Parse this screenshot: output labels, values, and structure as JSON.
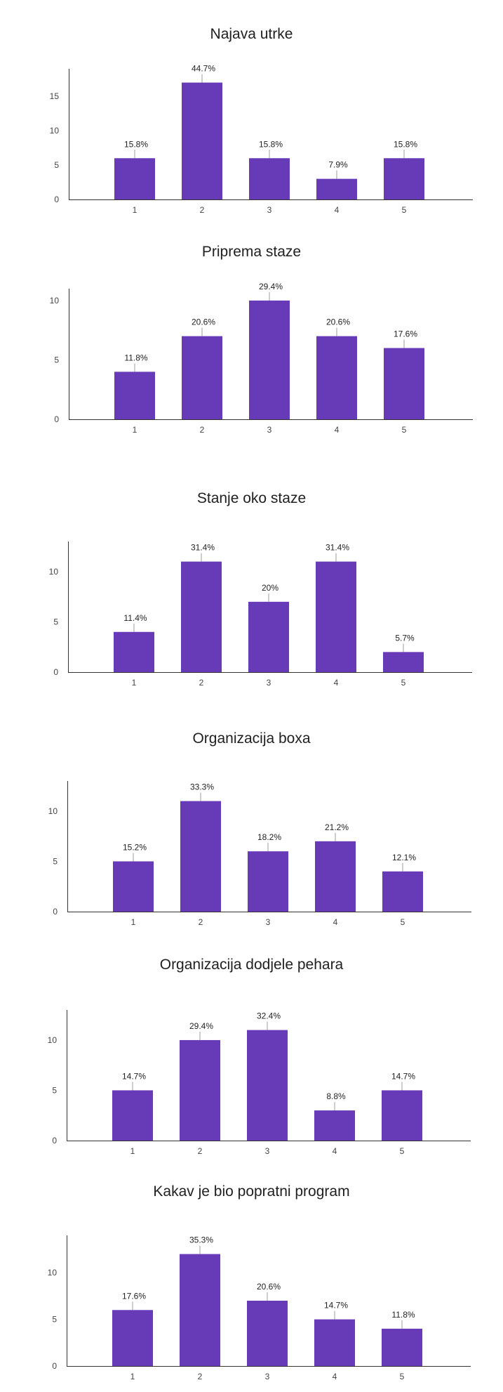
{
  "colors": {
    "bar": "#673AB7",
    "axis": "#333333",
    "leader": "#9E9E9E"
  },
  "chart_data": [
    {
      "type": "bar",
      "title": "Najava utrke",
      "categories": [
        "1",
        "2",
        "3",
        "4",
        "5"
      ],
      "values": [
        6,
        17,
        6,
        3,
        6
      ],
      "data_labels": [
        "15.8%",
        "44.7%",
        "15.8%",
        "7.9%",
        "15.8%"
      ],
      "yticks": [
        0,
        5,
        10,
        15
      ],
      "ylim": [
        0,
        19
      ],
      "grid": false
    },
    {
      "type": "bar",
      "title": "Priprema staze",
      "categories": [
        "1",
        "2",
        "3",
        "4",
        "5"
      ],
      "values": [
        4,
        7,
        10,
        7,
        6
      ],
      "data_labels": [
        "11.8%",
        "20.6%",
        "29.4%",
        "20.6%",
        "17.6%"
      ],
      "yticks": [
        0,
        5,
        10
      ],
      "ylim": [
        0,
        11
      ],
      "grid": false
    },
    {
      "type": "bar",
      "title": "Stanje oko staze",
      "categories": [
        "1",
        "2",
        "3",
        "4",
        "5"
      ],
      "values": [
        4,
        11,
        7,
        11,
        2
      ],
      "data_labels": [
        "11.4%",
        "31.4%",
        "20%",
        "31.4%",
        "5.7%"
      ],
      "yticks": [
        0,
        5,
        10
      ],
      "ylim": [
        0,
        13
      ],
      "grid": false
    },
    {
      "type": "bar",
      "title": "Organizacija boxa",
      "categories": [
        "1",
        "2",
        "3",
        "4",
        "5"
      ],
      "values": [
        5,
        11,
        6,
        7,
        4
      ],
      "data_labels": [
        "15.2%",
        "33.3%",
        "18.2%",
        "21.2%",
        "12.1%"
      ],
      "yticks": [
        0,
        5,
        10
      ],
      "ylim": [
        0,
        13
      ],
      "grid": false
    },
    {
      "type": "bar",
      "title": "Organizacija dodjele pehara",
      "categories": [
        "1",
        "2",
        "3",
        "4",
        "5"
      ],
      "values": [
        5,
        10,
        11,
        3,
        5
      ],
      "data_labels": [
        "14.7%",
        "29.4%",
        "32.4%",
        "8.8%",
        "14.7%"
      ],
      "yticks": [
        0,
        5,
        10
      ],
      "ylim": [
        0,
        13
      ],
      "grid": false
    },
    {
      "type": "bar",
      "title": "Kakav je bio popratni program",
      "categories": [
        "1",
        "2",
        "3",
        "4",
        "5"
      ],
      "values": [
        6,
        12,
        7,
        5,
        4
      ],
      "data_labels": [
        "17.6%",
        "35.3%",
        "20.6%",
        "14.7%",
        "11.8%"
      ],
      "yticks": [
        0,
        5,
        10
      ],
      "ylim": [
        0,
        14
      ],
      "grid": false
    }
  ]
}
